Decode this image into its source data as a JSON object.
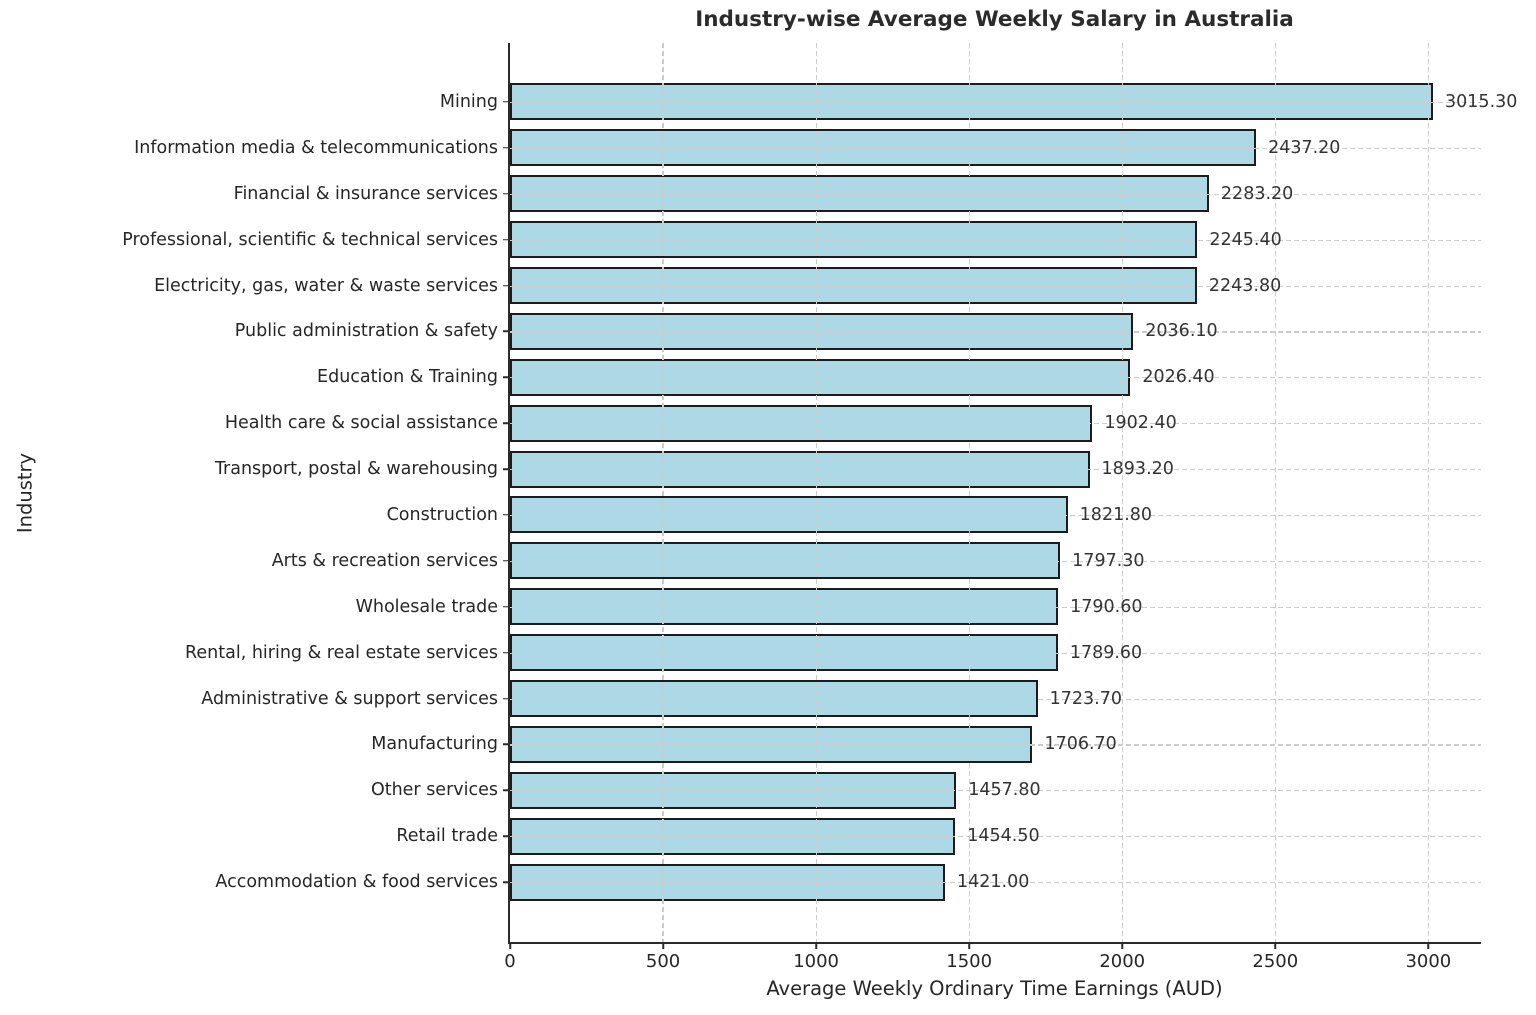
{
  "chart_data": {
    "type": "bar",
    "orientation": "horizontal",
    "title": "Industry-wise Average Weekly Salary in Australia",
    "xlabel": "Average Weekly Ordinary Time Earnings (AUD)",
    "ylabel": "Industry",
    "xlim": [
      0,
      3172
    ],
    "xticks": [
      0,
      500,
      1000,
      1500,
      2000,
      2500,
      3000
    ],
    "grid": true,
    "grid_style": "dashed",
    "legend": "none",
    "bar_color": "#ADD8E6",
    "bar_edge_color": "#1c1c1c",
    "grid_color": "#cccccc",
    "text_color": "#262626",
    "categories": [
      "Mining",
      "Information media & telecommunications",
      "Financial & insurance services",
      "Professional, scientific & technical services",
      "Electricity, gas, water & waste services",
      "Public administration & safety",
      "Education & Training",
      "Health care & social assistance",
      "Transport, postal & warehousing",
      "Construction",
      "Arts & recreation services",
      "Wholesale trade",
      "Rental, hiring & real estate services",
      "Administrative & support services",
      "Manufacturing",
      "Other services",
      "Retail trade",
      "Accommodation & food services"
    ],
    "values": [
      3015.3,
      2437.2,
      2283.2,
      2245.4,
      2243.8,
      2036.1,
      2026.4,
      1902.4,
      1893.2,
      1821.8,
      1797.3,
      1790.6,
      1789.6,
      1723.7,
      1706.7,
      1457.8,
      1454.5,
      1421.0
    ],
    "value_labels": [
      "3015.30",
      "2437.20",
      "2283.20",
      "2245.40",
      "2243.80",
      "2036.10",
      "2026.40",
      "1902.40",
      "1893.20",
      "1821.80",
      "1797.30",
      "1790.60",
      "1789.60",
      "1723.70",
      "1706.70",
      "1457.80",
      "1454.50",
      "1421.00"
    ]
  }
}
